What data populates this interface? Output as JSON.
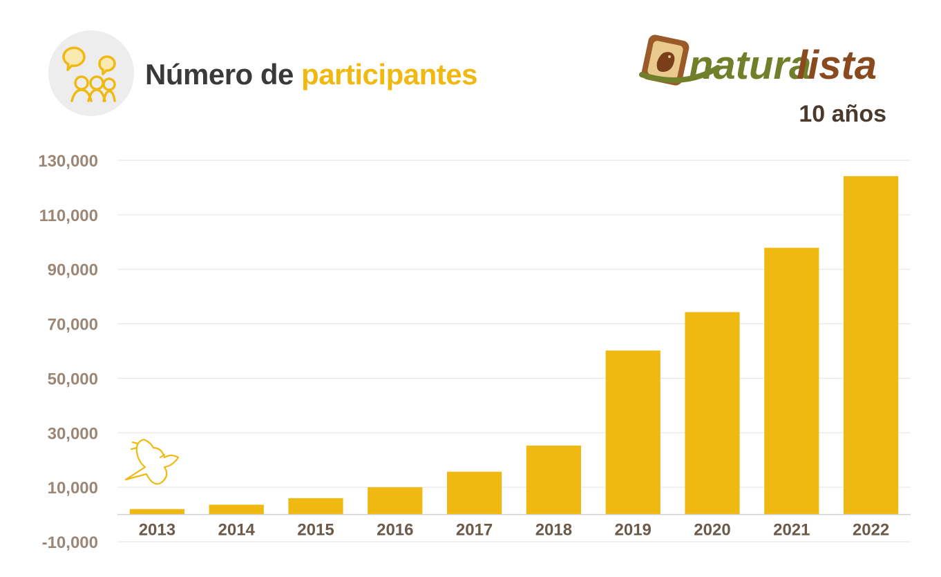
{
  "header": {
    "title_part1": "Número de",
    "title_part2": "participantes",
    "icon": "people-chat-icon"
  },
  "logo": {
    "brand_part1": "natura",
    "brand_part2": "lista",
    "subtitle": "10 años",
    "icon": "bird-phone-icon"
  },
  "mascot_icon": "bird-icon",
  "colors": {
    "bar": "#f0b912",
    "title_accent": "#f0b912",
    "brand_green": "#6f7f2a",
    "brand_brown": "#8a4a1f",
    "axis_label": "#9c8776"
  },
  "chart_data": {
    "type": "bar",
    "title": "Número de participantes",
    "categories": [
      "2013",
      "2014",
      "2015",
      "2016",
      "2017",
      "2018",
      "2019",
      "2020",
      "2021",
      "2022"
    ],
    "values": [
      2000,
      3600,
      6000,
      10000,
      15700,
      25300,
      60200,
      74300,
      97900,
      124200
    ],
    "yticks": [
      -10000,
      10000,
      30000,
      50000,
      70000,
      90000,
      110000,
      130000
    ],
    "ytick_labels": [
      "-10,000",
      "10,000",
      "30,000",
      "50,000",
      "70,000",
      "90,000",
      "110,000",
      "130,000"
    ],
    "ylim": [
      -10000,
      130000
    ],
    "grid": true,
    "xlabel": "",
    "ylabel": ""
  }
}
